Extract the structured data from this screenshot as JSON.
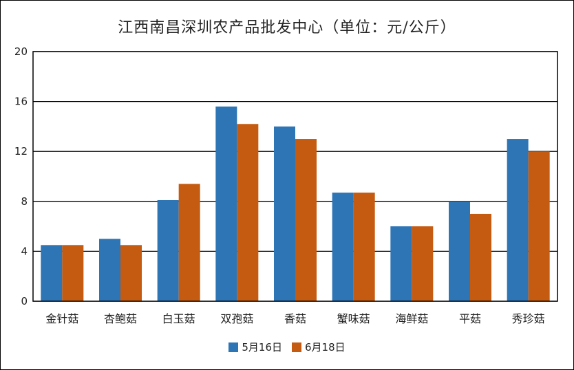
{
  "chart_data": {
    "type": "bar",
    "title": "江西南昌深圳农产品批发中心（单位：元/公斤）",
    "xlabel": "",
    "ylabel": "",
    "categories": [
      "金针菇",
      "杏鲍菇",
      "白玉菇",
      "双孢菇",
      "香菇",
      "蟹味菇",
      "海鲜菇",
      "平菇",
      "秀珍菇"
    ],
    "series": [
      {
        "name": "5月16日",
        "color": "#2e75b6",
        "values": [
          4.5,
          5.0,
          8.1,
          15.6,
          14.0,
          8.7,
          6.0,
          8.0,
          13.0
        ]
      },
      {
        "name": "6月18日",
        "color": "#c55a11",
        "values": [
          4.5,
          4.5,
          9.4,
          14.2,
          13.0,
          8.7,
          6.0,
          7.0,
          12.0
        ]
      }
    ],
    "ylim": [
      0,
      20
    ],
    "yticks": [
      0,
      4,
      8,
      12,
      16,
      20
    ],
    "grid": true,
    "legend_position": "bottom"
  }
}
